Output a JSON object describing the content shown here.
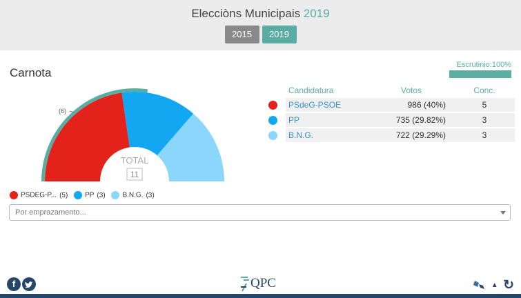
{
  "header": {
    "title": "Elecciòns Municipais",
    "title_year": "2019",
    "years": [
      "2015",
      "2019"
    ],
    "active_year": "2019"
  },
  "place": {
    "name": "Carnota"
  },
  "escrutinio": {
    "label": "Escrutinio:100%",
    "progress": 1.0
  },
  "chart": {
    "total_label": "TOTAL",
    "total_value": "11",
    "previous_label": "(6)",
    "seats": [
      5,
      3,
      3
    ]
  },
  "legend": [
    {
      "label": "PSDEG-P...",
      "count": "(5)",
      "color": "#e3231b"
    },
    {
      "label": "PP",
      "count": "(3)",
      "color": "#12a7f0"
    },
    {
      "label": "B.N.G.",
      "count": "(3)",
      "color": "#8bd6fb"
    }
  ],
  "table": {
    "headers": {
      "name": "Candidatura",
      "votes": "Votos",
      "seats": "Conc."
    },
    "rows": [
      {
        "name": "PSdeG-PSOE",
        "votes": "986 (40%)",
        "seats": "5",
        "color": "#e3231b"
      },
      {
        "name": "PP",
        "votes": "735 (29.82%)",
        "seats": "3",
        "color": "#12a7f0"
      },
      {
        "name": "B.N.G.",
        "votes": "722 (29.29%)",
        "seats": "3",
        "color": "#8bd6fb"
      }
    ]
  },
  "location_select": {
    "placeholder": "Por emprazamento..."
  },
  "footer": {
    "logo_text": "QPC",
    "icons": [
      "facebook-icon",
      "twitter-icon",
      "map-icon",
      "chevron-up-icon",
      "refresh-icon"
    ]
  },
  "colors": {
    "accent": "#5aada3",
    "dark": "#27476a"
  }
}
